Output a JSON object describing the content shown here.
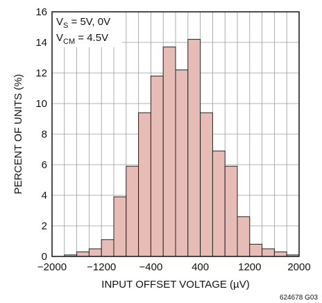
{
  "chart_data": {
    "type": "bar",
    "title": "",
    "xlabel": "INPUT OFFSET VOLTAGE (µV)",
    "ylabel": "PERCENT OF UNITS (%)",
    "xlim": [
      -2000,
      2000
    ],
    "ylim": [
      0,
      16
    ],
    "xticks": [
      "−2000",
      "−1200",
      "−400",
      "400",
      "1200",
      "2000"
    ],
    "xtick_values": [
      -2000,
      -1200,
      -400,
      400,
      1200,
      2000
    ],
    "yticks": [
      "0",
      "2",
      "4",
      "6",
      "8",
      "10",
      "12",
      "14",
      "16"
    ],
    "ytick_values": [
      0,
      2,
      4,
      6,
      8,
      10,
      12,
      14,
      16
    ],
    "grid": true,
    "bin_width": 200,
    "bin_edges": [
      -1800,
      -1600,
      -1400,
      -1200,
      -1000,
      -800,
      -600,
      -400,
      -200,
      0,
      200,
      400,
      600,
      800,
      1000,
      1200,
      1400,
      1600,
      1800,
      2000
    ],
    "values": [
      0.1,
      0.3,
      0.5,
      1.1,
      3.9,
      5.9,
      9.4,
      11.8,
      13.7,
      12.2,
      14.2,
      9.4,
      6.9,
      5.9,
      2.6,
      0.8,
      0.5,
      0.3,
      0.1
    ],
    "bar_color": "#e8bcb6",
    "bar_edge_color": "#222222",
    "annotation": {
      "line1_main": "V",
      "line1_sub": "S",
      "line1_rest": " = 5V, 0V",
      "line2_main": "V",
      "line2_sub": "CM",
      "line2_rest": " = 4.5V"
    },
    "figure_id": "624678 G03"
  }
}
